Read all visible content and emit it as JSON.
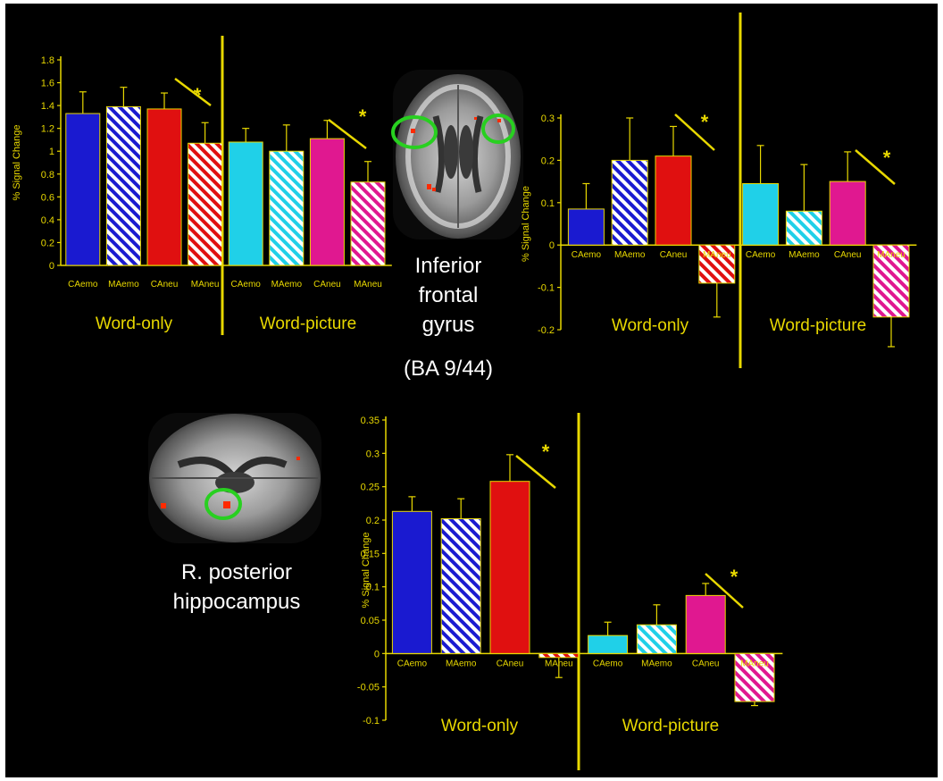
{
  "labels": {
    "ifg": [
      "Inferior",
      "frontal",
      "gyrus",
      "(BA 9/44)"
    ],
    "hippocampus": [
      "R. posterior",
      "hippocampus"
    ]
  },
  "colors": {
    "axis": "#e8d800",
    "CAemo": "#1a1ad0",
    "MAemo": "hatch-blue",
    "CAneu": "#e01010",
    "MAneu": "hatch-red",
    "CAemo_wp": "#20d0e8",
    "MAemo_wp": "hatch-cyan",
    "CAneu_wp": "#e01890",
    "MAneu_wp": "hatch-magenta",
    "roi_circle": "#28d020",
    "activation": "#ff2a00"
  },
  "chart_data": [
    {
      "type": "bar",
      "ylabel": "% Signal Change",
      "ylim": [
        0,
        1.8
      ],
      "yticks": [
        "0",
        "0.2",
        "0.4",
        "0.6",
        "0.8",
        "1",
        "1.2",
        "1.4",
        "1.6",
        "1.8"
      ],
      "groups": [
        {
          "name": "Word-only",
          "categories": [
            "CAemo",
            "MAemo",
            "CAneu",
            "MAneu"
          ],
          "values": [
            1.33,
            1.39,
            1.37,
            1.07
          ],
          "errors": [
            0.19,
            0.17,
            0.14,
            0.18
          ],
          "significance": "*"
        },
        {
          "name": "Word-picture",
          "categories": [
            "CAemo",
            "MAemo",
            "CAneu",
            "MAneu"
          ],
          "values": [
            1.08,
            1.0,
            1.11,
            0.73
          ],
          "errors": [
            0.12,
            0.23,
            0.16,
            0.18
          ],
          "significance": "*"
        }
      ]
    },
    {
      "type": "bar",
      "ylabel": "% Signal Change",
      "ylim": [
        -0.2,
        0.3
      ],
      "yticks": [
        "-0.2",
        "-0.1",
        "0",
        "0.1",
        "0.2",
        "0.3"
      ],
      "groups": [
        {
          "name": "Word-only",
          "categories": [
            "CAemo",
            "MAemo",
            "CAneu",
            "MAneu"
          ],
          "values": [
            0.085,
            0.2,
            0.21,
            -0.09
          ],
          "errors": [
            0.06,
            0.1,
            0.07,
            0.08
          ],
          "significance": "*"
        },
        {
          "name": "Word-picture",
          "categories": [
            "CAemo",
            "MAemo",
            "CAneu",
            "MAneu"
          ],
          "values": [
            0.145,
            0.08,
            0.15,
            -0.17
          ],
          "errors": [
            0.09,
            0.11,
            0.07,
            0.07
          ],
          "significance": "*"
        }
      ]
    },
    {
      "type": "bar",
      "ylabel": "% Signal Change",
      "ylim": [
        -0.1,
        0.35
      ],
      "yticks": [
        "-0.1",
        "-0.05",
        "0",
        "0.05",
        "0.1",
        "0.15",
        "0.2",
        "0.25",
        "0.3",
        "0.35"
      ],
      "groups": [
        {
          "name": "Word-only",
          "categories": [
            "CAemo",
            "MAemo",
            "CAneu",
            "MAneu"
          ],
          "values": [
            0.213,
            0.202,
            0.258,
            -0.006
          ],
          "errors": [
            0.022,
            0.03,
            0.04,
            0.03
          ],
          "significance": "*"
        },
        {
          "name": "Word-picture",
          "categories": [
            "CAemo",
            "MAemo",
            "CAneu",
            "MAneu"
          ],
          "values": [
            0.027,
            0.043,
            0.087,
            -0.072
          ],
          "errors": [
            0.02,
            0.03,
            0.018,
            0.006
          ],
          "significance": "*"
        }
      ]
    }
  ]
}
